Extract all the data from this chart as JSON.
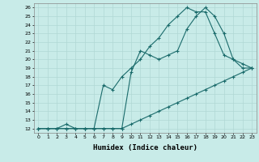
{
  "xlabel": "Humidex (Indice chaleur)",
  "xlim": [
    -0.5,
    23.5
  ],
  "ylim": [
    11.5,
    26.5
  ],
  "xticks": [
    0,
    1,
    2,
    3,
    4,
    5,
    6,
    7,
    8,
    9,
    10,
    11,
    12,
    13,
    14,
    15,
    16,
    17,
    18,
    19,
    20,
    21,
    22,
    23
  ],
  "yticks": [
    12,
    13,
    14,
    15,
    16,
    17,
    18,
    19,
    20,
    21,
    22,
    23,
    24,
    25,
    26
  ],
  "bg_color": "#c8ebe8",
  "grid_color": "#b0d8d4",
  "line_color": "#1a6b6b",
  "line1_x": [
    0,
    1,
    2,
    3,
    4,
    5,
    6,
    7,
    8,
    9,
    10,
    11,
    12,
    13,
    14,
    15,
    16,
    17,
    18,
    19,
    20,
    21,
    22,
    23
  ],
  "line1_y": [
    12,
    12,
    12,
    12,
    12,
    12,
    12,
    12,
    12,
    12,
    12.5,
    13,
    13.5,
    14,
    14.5,
    15,
    15.5,
    16,
    16.5,
    17,
    17.5,
    18,
    18.5,
    19
  ],
  "line2_x": [
    0,
    1,
    2,
    3,
    4,
    5,
    6,
    7,
    8,
    9,
    10,
    11,
    12,
    13,
    14,
    15,
    16,
    17,
    18,
    19,
    20,
    21,
    22,
    23
  ],
  "line2_y": [
    12,
    12,
    12,
    12,
    12,
    12,
    12,
    12,
    12,
    12,
    18.5,
    21,
    20.5,
    20,
    20.5,
    21,
    23.5,
    25,
    26,
    25,
    23,
    20,
    19.5,
    19
  ],
  "line3_x": [
    0,
    1,
    2,
    3,
    4,
    5,
    6,
    7,
    8,
    9,
    10,
    11,
    12,
    13,
    14,
    15,
    16,
    17,
    18,
    19,
    20,
    21,
    22,
    23
  ],
  "line3_y": [
    12,
    12,
    12,
    12.5,
    12,
    12,
    12,
    17,
    16.5,
    18,
    19,
    20,
    21.5,
    22.5,
    24,
    25,
    26,
    25.5,
    25.5,
    23,
    20.5,
    20,
    19,
    19
  ]
}
